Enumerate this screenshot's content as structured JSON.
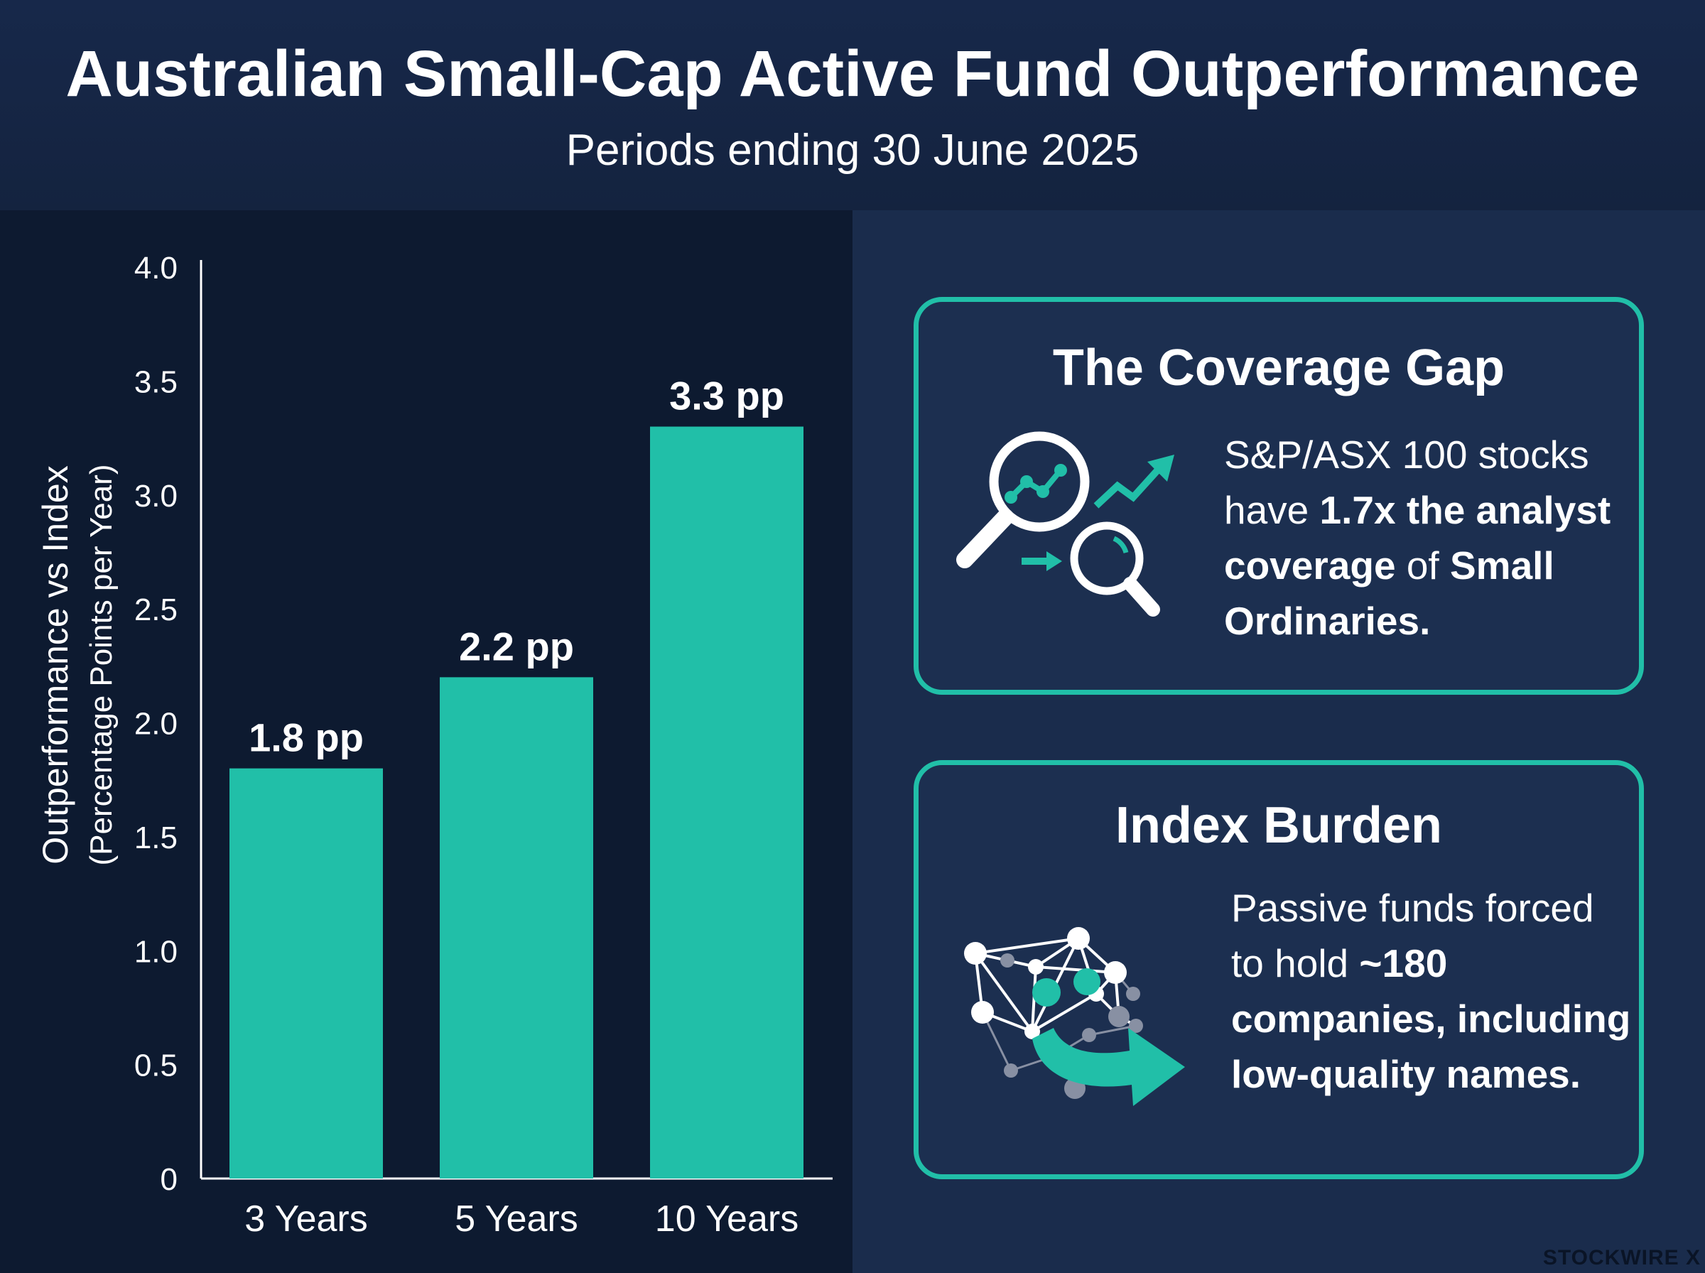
{
  "header": {
    "title": "Australian Small-Cap Active Fund Outperformance",
    "subtitle": "Periods ending 30 June 2025"
  },
  "chart_data": {
    "type": "bar",
    "categories": [
      "3 Years",
      "5 Years",
      "10 Years"
    ],
    "values": [
      1.8,
      2.2,
      3.3
    ],
    "data_labels": [
      "1.8 pp",
      "2.2 pp",
      "3.3 pp"
    ],
    "ylabel": "Outperformance vs Index",
    "ylabel_sub": "(Percentage Points per Year)",
    "ylim": [
      0,
      4.0
    ],
    "yticks": [
      0,
      0.5,
      1.0,
      1.5,
      2.0,
      2.5,
      3.0,
      3.5,
      4.0
    ],
    "ytick_labels": [
      "0",
      "0.5",
      "1.0",
      "1.5",
      "2.0",
      "2.5",
      "3.0",
      "3.5",
      "4.0"
    ],
    "grid": false,
    "bar_color": "#21bfa8"
  },
  "cards": {
    "coverage": {
      "title": "The Coverage Gap",
      "text_1": "S&P/ASX 100 stocks have ",
      "text_2": "1.7x the analyst coverage",
      "text_3": " of ",
      "text_4": "Small Ordinaries.",
      "icon": "magnifier-chart-icon"
    },
    "burden": {
      "title": "Index Burden",
      "text_1": "Passive funds forced to hold ",
      "text_2": "~180 companies, including low-quality names.",
      "icon": "network-arrow-icon"
    }
  },
  "watermark": "STOCKWIRE X",
  "colors": {
    "accent": "#21bfa8",
    "background": "#0d1a30",
    "panel": "#1a2c4c"
  }
}
